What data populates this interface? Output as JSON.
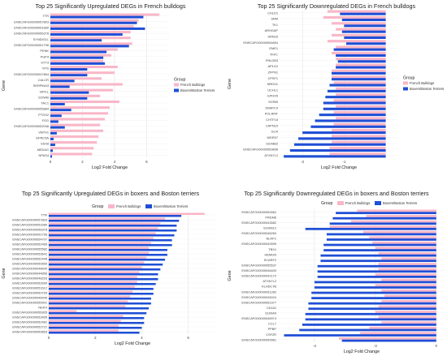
{
  "chart_data": [
    {
      "type": "bar",
      "orientation": "horizontal",
      "title": "Top 25 Significantly Upregulated DEGs in French bulldogs",
      "xlabel": "Log2 Fold Change",
      "ylabel": "Gene",
      "xlim": [
        0,
        7.4
      ],
      "xticks": [
        0,
        2,
        4,
        6
      ],
      "grid": true,
      "legend": {
        "title": "Group",
        "position": "right"
      },
      "categories": [
        "TTR",
        "ENSCAFG00000057803",
        "ENSCAFG00000051680",
        "ENSCAFG00000056378",
        "SYNDIG1L",
        "ENSCAFG00000051796",
        "PENK",
        "PGP4",
        "SYT3",
        "NTS",
        "ENSCAFG00000047864",
        "CALCR",
        "SERPINA3",
        "VAT1L",
        "SCN4B",
        "TAC1",
        "ENSCAFG00000055884",
        "PTGS2",
        "FGG",
        "ENSCAFG00000052038",
        "VEPH1",
        "GPRC5A",
        "SSX8",
        "MEDAG",
        "NPAS4"
      ],
      "series": [
        {
          "name": "French Bulldogs",
          "color": "#f9b6c8",
          "values": [
            6.8,
            5.5,
            5.2,
            5.0,
            5.0,
            5.1,
            4.2,
            3.8,
            3.3,
            4.2,
            4.0,
            3.2,
            4.5,
            3.9,
            3.1,
            4.3,
            3.7,
            3.6,
            3.4,
            3.1,
            3.3,
            3.0,
            2.9,
            2.7,
            2.6
          ]
        },
        {
          "name": "Boxers/Boston Terriers",
          "color": "#1f4fd6",
          "values": [
            5.8,
            5.4,
            5.9,
            4.5,
            3.2,
            4.9,
            3.5,
            3.3,
            3.4,
            2.3,
            2.3,
            1.5,
            1.2,
            2.4,
            2.3,
            0.9,
            1.3,
            0.7,
            0.5,
            0.9,
            0.4,
            0.2,
            0.3,
            0.15,
            0.1
          ]
        }
      ]
    },
    {
      "type": "bar",
      "orientation": "horizontal",
      "title": "Top 25 Significantly Downregulated DEGs in French bulldogs",
      "xlabel": "Log2 Fold Change",
      "ylabel": "Gene",
      "xlim": [
        -2.55,
        0.3
      ],
      "xticks": [
        -2,
        -1
      ],
      "grid": true,
      "legend": {
        "title": "Group",
        "position": "right"
      },
      "categories": [
        "CHLD1",
        "SRM",
        "TK1",
        "ARHGAP",
        "SPAG5",
        "ENSCAFG00000054654",
        "EME1",
        "TKFC",
        "PHLDB3",
        "AP1G2",
        "ZFPN1",
        "CPSF1",
        "NRDH1",
        "UCHL1",
        "EPHX5",
        "SCRIB",
        "SNAPC4",
        "POLRMT",
        "CHTF18",
        "CAPN15",
        "GLI4",
        "WDR97",
        "SSX8B2",
        "ENSCAFG00000053898",
        "ATXN7L2"
      ],
      "series": [
        {
          "name": "French Bulldogs",
          "color": "#f9b6c8",
          "values": [
            -1.4,
            -1.5,
            -1.3,
            -1.2,
            -1.3,
            -1.4,
            -1.2,
            -1.3,
            -1.2,
            -1.2,
            -1.3,
            -1.3,
            -1.25,
            -1.2,
            -1.2,
            -1.25,
            -1.2,
            -1.25,
            -1.2,
            -1.25,
            -1.3,
            -1.3,
            -1.3,
            -1.35,
            -1.35
          ]
        },
        {
          "name": "Boxers/Boston Terriers",
          "color": "#1f4fd6",
          "values": [
            -1.1,
            -1.05,
            -1.0,
            -1.05,
            -1.0,
            -0.95,
            -1.25,
            -1.2,
            -1.15,
            -1.2,
            -1.3,
            -1.3,
            -1.35,
            -1.4,
            -1.45,
            -1.5,
            -1.5,
            -1.6,
            -1.7,
            -1.8,
            -2.0,
            -2.1,
            -2.2,
            -2.3,
            -2.45
          ]
        }
      ]
    },
    {
      "type": "bar",
      "orientation": "horizontal",
      "title": "Top 25 Significantly Upregulated DEGs in boxers and Boston terriers",
      "xlabel": "Log2 Fold Change",
      "ylabel": "Gene",
      "xlim": [
        0,
        7.2
      ],
      "xticks": [
        0,
        2,
        4,
        6
      ],
      "grid": true,
      "legend": {
        "title": "Group",
        "position": "top"
      },
      "categories": [
        "TTR",
        "ENSCAFG00000057803",
        "ENSCAFG00000051680",
        "ENSCAFG00000056378",
        "ENSCAFG00000051796",
        "ENSCAFG00000054707",
        "ENSCAFG00000052465",
        "ENSCAFG00000055582",
        "ENSCAFG00000053641",
        "ENSCAFG00000052446",
        "ENSCAFG00000050659",
        "ENSCAFG00000048640",
        "ENSCAFG00000044856",
        "ENSCAFG00000048293",
        "ENSCAFG00000052699",
        "ENSCAFG00000051612",
        "ENSCAFG00000050799",
        "ENSCAFG00000046440",
        "ENSCAFG00000055401",
        "NEFH",
        "ENSCAFG00000056305",
        "ENSCAFG00000053495",
        "ENSCAFG00000052481",
        "ENSCAFG00000052721",
        "ENSCAFG00000059853"
      ],
      "series": [
        {
          "name": "French Bulldogs",
          "color": "#f9b6c8",
          "values": [
            6.7,
            5.0,
            4.8,
            4.7,
            4.6,
            4.5,
            4.4,
            4.3,
            4.3,
            4.2,
            4.1,
            4.0,
            3.9,
            3.8,
            3.8,
            3.7,
            3.6,
            3.5,
            3.4,
            3.3,
            1.2,
            3.2,
            3.1,
            3.0,
            3.0
          ]
        },
        {
          "name": "Boxers/Boston Terriers",
          "color": "#1f4fd6",
          "values": [
            5.7,
            5.6,
            5.5,
            5.5,
            5.4,
            5.3,
            5.3,
            5.1,
            5.1,
            5.0,
            4.9,
            4.8,
            4.7,
            4.7,
            4.6,
            4.5,
            4.5,
            4.4,
            4.4,
            4.3,
            4.2,
            4.1,
            4.1,
            4.0,
            3.9
          ]
        }
      ]
    },
    {
      "type": "bar",
      "orientation": "horizontal",
      "title": "Top 25 Significantly Downregulated DEGs in boxers and Boston terriers",
      "xlabel": "Log2 Fold Change",
      "ylabel": "Gene",
      "xlim": [
        -5.2,
        0.3
      ],
      "xticks": [
        -4,
        -2,
        0
      ],
      "grid": true,
      "legend": {
        "title": "Group",
        "position": "top"
      },
      "categories": [
        "ENSCAFG00000052662",
        "PRDM6",
        "ENSCAFG00000043582",
        "S100A12",
        "ENSCAFG00000046260",
        "NLRP1",
        "ENSCAFG00000042699",
        "TBX1",
        "HEMGN",
        "SCARF2",
        "ENSCAFG00000055537",
        "ENSCAFG00000046400",
        "ENSCAFG00000042172",
        "ATXN7L2",
        "KLHDC7B",
        "ENSCAFG00000051282",
        "ENSCAFG00000045024",
        "ENSCAFG00000052377",
        "CD151",
        "S100A9",
        "ENSCAFG00000046974",
        "CCL7",
        "PPBP",
        "CSF2R",
        "ENSCAFG00000059961"
      ],
      "series": [
        {
          "name": "French Bulldogs",
          "color": "#f9b6c8",
          "values": [
            -2.6,
            -2.3,
            -2.8,
            -3.5,
            -2.4,
            -2.2,
            -2.1,
            -2.0,
            -1.9,
            -1.8,
            -1.9,
            -1.9,
            -2.0,
            -1.8,
            -2.0,
            -1.8,
            -1.7,
            -1.8,
            -1.9,
            -2.0,
            -1.9,
            -1.8,
            -2.2,
            -2.5,
            -3.2
          ]
        },
        {
          "name": "Boxers/Boston Terriers",
          "color": "#1f4fd6",
          "values": [
            -3.3,
            -3.4,
            -3.5,
            -4.3,
            -3.6,
            -3.6,
            -3.7,
            -3.7,
            -3.8,
            -3.8,
            -3.9,
            -3.9,
            -3.9,
            -4.0,
            -4.0,
            -4.1,
            -4.1,
            -4.2,
            -4.2,
            -4.3,
            -4.3,
            -4.4,
            -4.5,
            -5.0,
            -3.1
          ]
        }
      ]
    }
  ],
  "legend_labels": {
    "group": "Group",
    "a": "French Bulldogs",
    "b": "Boxers/Boston Terriers"
  }
}
